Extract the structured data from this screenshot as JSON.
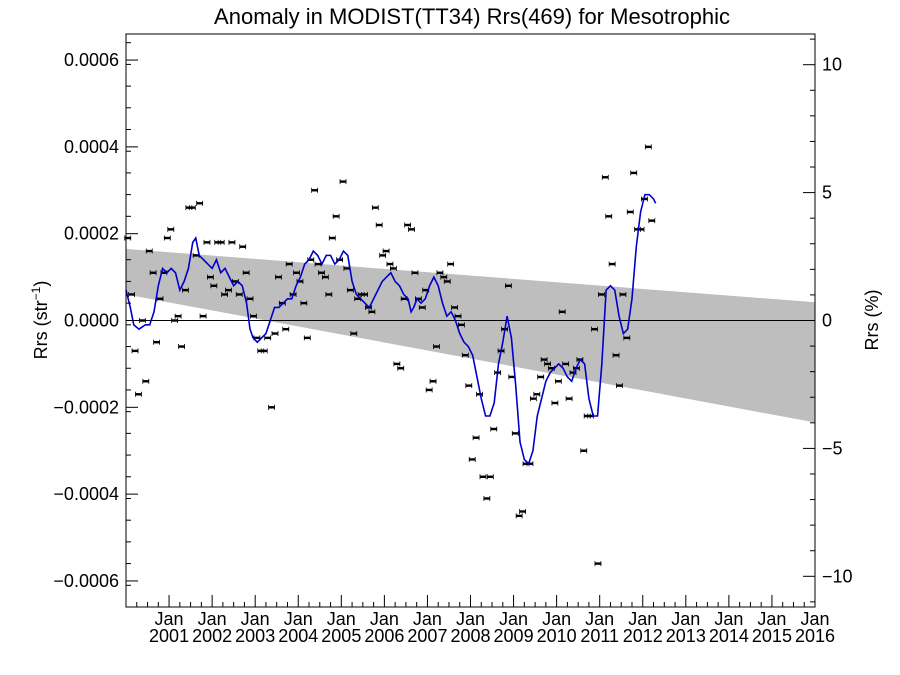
{
  "chart_data": {
    "type": "scatter",
    "title": "Anomaly in MODIST(TT34) Rrs(469) for Mesotrophic",
    "ylabel": "Rrs (str",
    "ylabel_sup": "−1",
    "ylabel_close": ")",
    "ylabel_right": "Rrs (%)",
    "xlim": [
      2000.0,
      2016.0
    ],
    "ylim": [
      -0.00066,
      0.00066
    ],
    "y2lim": [
      -11.2,
      11.2
    ],
    "y_ticks": [
      {
        "value": 0.0006,
        "label": "0.0006"
      },
      {
        "value": 0.0004,
        "label": "0.0004"
      },
      {
        "value": 0.0002,
        "label": "0.0002"
      },
      {
        "value": 0.0,
        "label": "0.0000"
      },
      {
        "value": -0.0002,
        "label": "−0.0002"
      },
      {
        "value": -0.0004,
        "label": "−0.0004"
      },
      {
        "value": -0.0006,
        "label": "−0.0006"
      }
    ],
    "y2_ticks": [
      {
        "value": 10,
        "label": "10"
      },
      {
        "value": 5,
        "label": "5"
      },
      {
        "value": 0,
        "label": "0"
      },
      {
        "value": -5,
        "label": "−5"
      },
      {
        "value": -10,
        "label": "−10"
      }
    ],
    "x_ticks": [
      {
        "value": 2001,
        "month": "Jan",
        "year": "2001"
      },
      {
        "value": 2002,
        "month": "Jan",
        "year": "2002"
      },
      {
        "value": 2003,
        "month": "Jan",
        "year": "2003"
      },
      {
        "value": 2004,
        "month": "Jan",
        "year": "2004"
      },
      {
        "value": 2005,
        "month": "Jan",
        "year": "2005"
      },
      {
        "value": 2006,
        "month": "Jan",
        "year": "2006"
      },
      {
        "value": 2007,
        "month": "Jan",
        "year": "2007"
      },
      {
        "value": 2008,
        "month": "Jan",
        "year": "2008"
      },
      {
        "value": 2009,
        "month": "Jan",
        "year": "2009"
      },
      {
        "value": 2010,
        "month": "Jan",
        "year": "2010"
      },
      {
        "value": 2011,
        "month": "Jan",
        "year": "2011"
      },
      {
        "value": 2012,
        "month": "Jan",
        "year": "2012"
      },
      {
        "value": 2013,
        "month": "Jan",
        "year": "2013"
      },
      {
        "value": 2014,
        "month": "Jan",
        "year": "2014"
      },
      {
        "value": 2015,
        "month": "Jan",
        "year": "2015"
      },
      {
        "value": 2016,
        "month": "Jan",
        "year": "2016"
      }
    ],
    "trend_band": {
      "x": [
        2000.0,
        2016.0
      ],
      "upper": [
        0.000165,
        4.2e-05
      ],
      "lower": [
        6e-05,
        -0.000235
      ],
      "color": "#bebebe"
    },
    "zero_line": 0.0,
    "colors": {
      "points": "#000000",
      "smooth_line": "#0000cc",
      "band": "#bebebe"
    },
    "monthly_anomaly": [
      [
        2000.04,
        0.00019
      ],
      [
        2000.13,
        6e-05
      ],
      [
        2000.21,
        -7e-05
      ],
      [
        2000.29,
        -0.00017
      ],
      [
        2000.38,
        0.0
      ],
      [
        2000.46,
        -0.00014
      ],
      [
        2000.54,
        0.00016
      ],
      [
        2000.63,
        0.00011
      ],
      [
        2000.71,
        -5e-05
      ],
      [
        2000.79,
        5e-05
      ],
      [
        2000.88,
        0.00011
      ],
      [
        2000.96,
        0.00019
      ],
      [
        2001.04,
        0.00021
      ],
      [
        2001.13,
        0.0
      ],
      [
        2001.21,
        1e-05
      ],
      [
        2001.29,
        -6e-05
      ],
      [
        2001.38,
        7e-05
      ],
      [
        2001.46,
        0.00026
      ],
      [
        2001.54,
        0.00026
      ],
      [
        2001.63,
        0.00015
      ],
      [
        2001.71,
        0.00027
      ],
      [
        2001.79,
        1e-05
      ],
      [
        2001.88,
        0.00018
      ],
      [
        2001.96,
        0.0001
      ],
      [
        2002.04,
        8e-05
      ],
      [
        2002.13,
        0.00018
      ],
      [
        2002.21,
        0.00018
      ],
      [
        2002.29,
        6e-05
      ],
      [
        2002.38,
        7e-05
      ],
      [
        2002.46,
        0.00018
      ],
      [
        2002.54,
        9e-05
      ],
      [
        2002.63,
        6e-05
      ],
      [
        2002.71,
        0.00017
      ],
      [
        2002.79,
        0.00011
      ],
      [
        2002.88,
        5e-05
      ],
      [
        2002.96,
        1e-05
      ],
      [
        2003.04,
        -4e-05
      ],
      [
        2003.13,
        -7e-05
      ],
      [
        2003.21,
        -7e-05
      ],
      [
        2003.29,
        -4e-05
      ],
      [
        2003.38,
        -0.0002
      ],
      [
        2003.46,
        -3e-05
      ],
      [
        2003.54,
        0.0001
      ],
      [
        2003.63,
        4e-05
      ],
      [
        2003.71,
        -2e-05
      ],
      [
        2003.79,
        0.00013
      ],
      [
        2003.88,
        6e-05
      ],
      [
        2003.96,
        0.00011
      ],
      [
        2004.04,
        9e-05
      ],
      [
        2004.13,
        4e-05
      ],
      [
        2004.21,
        -4e-05
      ],
      [
        2004.29,
        0.00014
      ],
      [
        2004.38,
        0.0003
      ],
      [
        2004.46,
        0.00013
      ],
      [
        2004.54,
        0.00011
      ],
      [
        2004.63,
        0.0001
      ],
      [
        2004.71,
        6e-05
      ],
      [
        2004.79,
        0.00019
      ],
      [
        2004.88,
        0.00024
      ],
      [
        2004.96,
        0.00014
      ],
      [
        2005.04,
        0.00032
      ],
      [
        2005.13,
        0.00012
      ],
      [
        2005.21,
        7e-05
      ],
      [
        2005.29,
        -3e-05
      ],
      [
        2005.38,
        5e-05
      ],
      [
        2005.46,
        6e-05
      ],
      [
        2005.54,
        6e-05
      ],
      [
        2005.63,
        3e-05
      ],
      [
        2005.71,
        2e-05
      ],
      [
        2005.79,
        0.00026
      ],
      [
        2005.88,
        0.00022
      ],
      [
        2005.96,
        0.00015
      ],
      [
        2006.04,
        0.00016
      ],
      [
        2006.13,
        0.00013
      ],
      [
        2006.21,
        0.00012
      ],
      [
        2006.29,
        -0.0001
      ],
      [
        2006.38,
        -0.00011
      ],
      [
        2006.46,
        5e-05
      ],
      [
        2006.54,
        0.00022
      ],
      [
        2006.63,
        0.00021
      ],
      [
        2006.71,
        0.00011
      ],
      [
        2006.79,
        5e-05
      ],
      [
        2006.88,
        3e-05
      ],
      [
        2006.96,
        7e-05
      ],
      [
        2007.04,
        -0.00016
      ],
      [
        2007.13,
        -0.00014
      ],
      [
        2007.21,
        -6e-05
      ],
      [
        2007.29,
        0.00011
      ],
      [
        2007.38,
        0.0001
      ],
      [
        2007.46,
        9e-05
      ],
      [
        2007.54,
        0.00013
      ],
      [
        2007.63,
        3e-05
      ],
      [
        2007.71,
        1e-05
      ],
      [
        2007.79,
        -1e-05
      ],
      [
        2007.88,
        -8e-05
      ],
      [
        2007.96,
        -0.00015
      ],
      [
        2008.04,
        -0.00032
      ],
      [
        2008.13,
        -0.00027
      ],
      [
        2008.21,
        -0.00017
      ],
      [
        2008.29,
        -0.00036
      ],
      [
        2008.38,
        -0.00041
      ],
      [
        2008.46,
        -0.00036
      ],
      [
        2008.54,
        -0.00025
      ],
      [
        2008.63,
        -0.00012
      ],
      [
        2008.71,
        -7e-05
      ],
      [
        2008.79,
        -2e-05
      ],
      [
        2008.88,
        8e-05
      ],
      [
        2008.96,
        -0.00013
      ],
      [
        2009.04,
        -0.00026
      ],
      [
        2009.13,
        -0.00045
      ],
      [
        2009.21,
        -0.00044
      ],
      [
        2009.29,
        -0.00033
      ],
      [
        2009.38,
        -0.00033
      ],
      [
        2009.46,
        -0.00018
      ],
      [
        2009.54,
        -0.00017
      ],
      [
        2009.63,
        -0.00013
      ],
      [
        2009.71,
        -9e-05
      ],
      [
        2009.79,
        -0.0001
      ],
      [
        2009.88,
        -0.00011
      ],
      [
        2009.96,
        -0.00019
      ],
      [
        2010.04,
        -0.00014
      ],
      [
        2010.13,
        2e-05
      ],
      [
        2010.21,
        -0.0001
      ],
      [
        2010.29,
        -0.00018
      ],
      [
        2010.38,
        -0.00012
      ],
      [
        2010.46,
        -0.00011
      ],
      [
        2010.54,
        -9e-05
      ],
      [
        2010.63,
        -0.0003
      ],
      [
        2010.71,
        -0.00022
      ],
      [
        2010.79,
        -0.00022
      ],
      [
        2010.88,
        -2e-05
      ],
      [
        2010.96,
        -0.00056
      ],
      [
        2011.04,
        6e-05
      ],
      [
        2011.13,
        0.00033
      ],
      [
        2011.21,
        0.00024
      ],
      [
        2011.29,
        0.00013
      ],
      [
        2011.38,
        -8e-05
      ],
      [
        2011.46,
        -0.00015
      ],
      [
        2011.54,
        6e-05
      ],
      [
        2011.63,
        -4e-05
      ],
      [
        2011.71,
        0.00025
      ],
      [
        2011.79,
        0.00034
      ],
      [
        2011.88,
        0.00021
      ],
      [
        2011.96,
        0.00021
      ],
      [
        2012.04,
        0.00028
      ],
      [
        2012.13,
        0.0004
      ],
      [
        2012.21,
        0.00023
      ]
    ],
    "smoothed": [
      [
        2000.0,
        7e-05
      ],
      [
        2000.1,
        3e-05
      ],
      [
        2000.18,
        -1e-05
      ],
      [
        2000.3,
        -2e-05
      ],
      [
        2000.45,
        -1e-05
      ],
      [
        2000.55,
        -1e-05
      ],
      [
        2000.65,
        2e-05
      ],
      [
        2000.75,
        8e-05
      ],
      [
        2000.85,
        0.00012
      ],
      [
        2000.95,
        0.00011
      ],
      [
        2001.05,
        0.00012
      ],
      [
        2001.15,
        0.00011
      ],
      [
        2001.25,
        7e-05
      ],
      [
        2001.35,
        9e-05
      ],
      [
        2001.45,
        0.00012
      ],
      [
        2001.55,
        0.00018
      ],
      [
        2001.62,
        0.00019
      ],
      [
        2001.7,
        0.00015
      ],
      [
        2001.8,
        0.00014
      ],
      [
        2001.9,
        0.00013
      ],
      [
        2002.0,
        0.00012
      ],
      [
        2002.1,
        0.00014
      ],
      [
        2002.2,
        0.00011
      ],
      [
        2002.3,
        0.00012
      ],
      [
        2002.4,
        0.0001
      ],
      [
        2002.5,
        8e-05
      ],
      [
        2002.6,
        9e-05
      ],
      [
        2002.7,
        8e-05
      ],
      [
        2002.8,
        4e-05
      ],
      [
        2002.88,
        -2e-05
      ],
      [
        2002.95,
        -4e-05
      ],
      [
        2003.05,
        -5e-05
      ],
      [
        2003.15,
        -4e-05
      ],
      [
        2003.25,
        -3e-05
      ],
      [
        2003.35,
        0.0
      ],
      [
        2003.45,
        3e-05
      ],
      [
        2003.55,
        3e-05
      ],
      [
        2003.65,
        4e-05
      ],
      [
        2003.75,
        5e-05
      ],
      [
        2003.85,
        5e-05
      ],
      [
        2003.95,
        8e-05
      ],
      [
        2004.05,
        0.0001
      ],
      [
        2004.15,
        0.00013
      ],
      [
        2004.25,
        0.00014
      ],
      [
        2004.35,
        0.00016
      ],
      [
        2004.45,
        0.00015
      ],
      [
        2004.55,
        0.00013
      ],
      [
        2004.65,
        0.00015
      ],
      [
        2004.75,
        0.00015
      ],
      [
        2004.85,
        0.00013
      ],
      [
        2004.95,
        0.00014
      ],
      [
        2005.05,
        0.00016
      ],
      [
        2005.15,
        0.00015
      ],
      [
        2005.25,
        9e-05
      ],
      [
        2005.35,
        6e-05
      ],
      [
        2005.45,
        5e-05
      ],
      [
        2005.55,
        4e-05
      ],
      [
        2005.65,
        3e-05
      ],
      [
        2005.75,
        5e-05
      ],
      [
        2005.85,
        7e-05
      ],
      [
        2005.95,
        9e-05
      ],
      [
        2006.05,
        0.0001
      ],
      [
        2006.15,
        0.00011
      ],
      [
        2006.25,
        9e-05
      ],
      [
        2006.35,
        8e-05
      ],
      [
        2006.45,
        6e-05
      ],
      [
        2006.55,
        5e-05
      ],
      [
        2006.62,
        2e-05
      ],
      [
        2006.68,
        3e-05
      ],
      [
        2006.76,
        5e-05
      ],
      [
        2006.85,
        4e-05
      ],
      [
        2006.95,
        5e-05
      ],
      [
        2007.05,
        8e-05
      ],
      [
        2007.15,
        0.0001
      ],
      [
        2007.25,
        8e-05
      ],
      [
        2007.35,
        4e-05
      ],
      [
        2007.45,
        1e-05
      ],
      [
        2007.55,
        2e-05
      ],
      [
        2007.65,
        0.0
      ],
      [
        2007.75,
        -3e-05
      ],
      [
        2007.85,
        -5e-05
      ],
      [
        2007.95,
        -6e-05
      ],
      [
        2008.05,
        -8e-05
      ],
      [
        2008.15,
        -0.00013
      ],
      [
        2008.25,
        -0.00018
      ],
      [
        2008.35,
        -0.00022
      ],
      [
        2008.45,
        -0.00022
      ],
      [
        2008.55,
        -0.00019
      ],
      [
        2008.65,
        -0.0001
      ],
      [
        2008.75,
        -5e-05
      ],
      [
        2008.85,
        1e-05
      ],
      [
        2008.95,
        -4e-05
      ],
      [
        2009.05,
        -0.00015
      ],
      [
        2009.15,
        -0.00028
      ],
      [
        2009.25,
        -0.00032
      ],
      [
        2009.35,
        -0.00033
      ],
      [
        2009.45,
        -0.0003
      ],
      [
        2009.55,
        -0.00022
      ],
      [
        2009.65,
        -0.00018
      ],
      [
        2009.75,
        -0.00014
      ],
      [
        2009.85,
        -0.00012
      ],
      [
        2009.95,
        -0.00011
      ],
      [
        2010.05,
        -0.0001
      ],
      [
        2010.15,
        -0.00011
      ],
      [
        2010.25,
        -0.00013
      ],
      [
        2010.35,
        -0.00014
      ],
      [
        2010.45,
        -0.00011
      ],
      [
        2010.55,
        -9e-05
      ],
      [
        2010.65,
        -0.0001
      ],
      [
        2010.75,
        -0.00018
      ],
      [
        2010.85,
        -0.00022
      ],
      [
        2010.95,
        -0.00022
      ],
      [
        2011.05,
        -0.0001
      ],
      [
        2011.15,
        7e-05
      ],
      [
        2011.25,
        8e-05
      ],
      [
        2011.35,
        7e-05
      ],
      [
        2011.45,
        1e-05
      ],
      [
        2011.55,
        -3e-05
      ],
      [
        2011.65,
        -2e-05
      ],
      [
        2011.75,
        5e-05
      ],
      [
        2011.85,
        0.00017
      ],
      [
        2011.95,
        0.00025
      ],
      [
        2012.05,
        0.00029
      ],
      [
        2012.15,
        0.00029
      ],
      [
        2012.25,
        0.00028
      ],
      [
        2012.3,
        0.00027
      ]
    ]
  }
}
